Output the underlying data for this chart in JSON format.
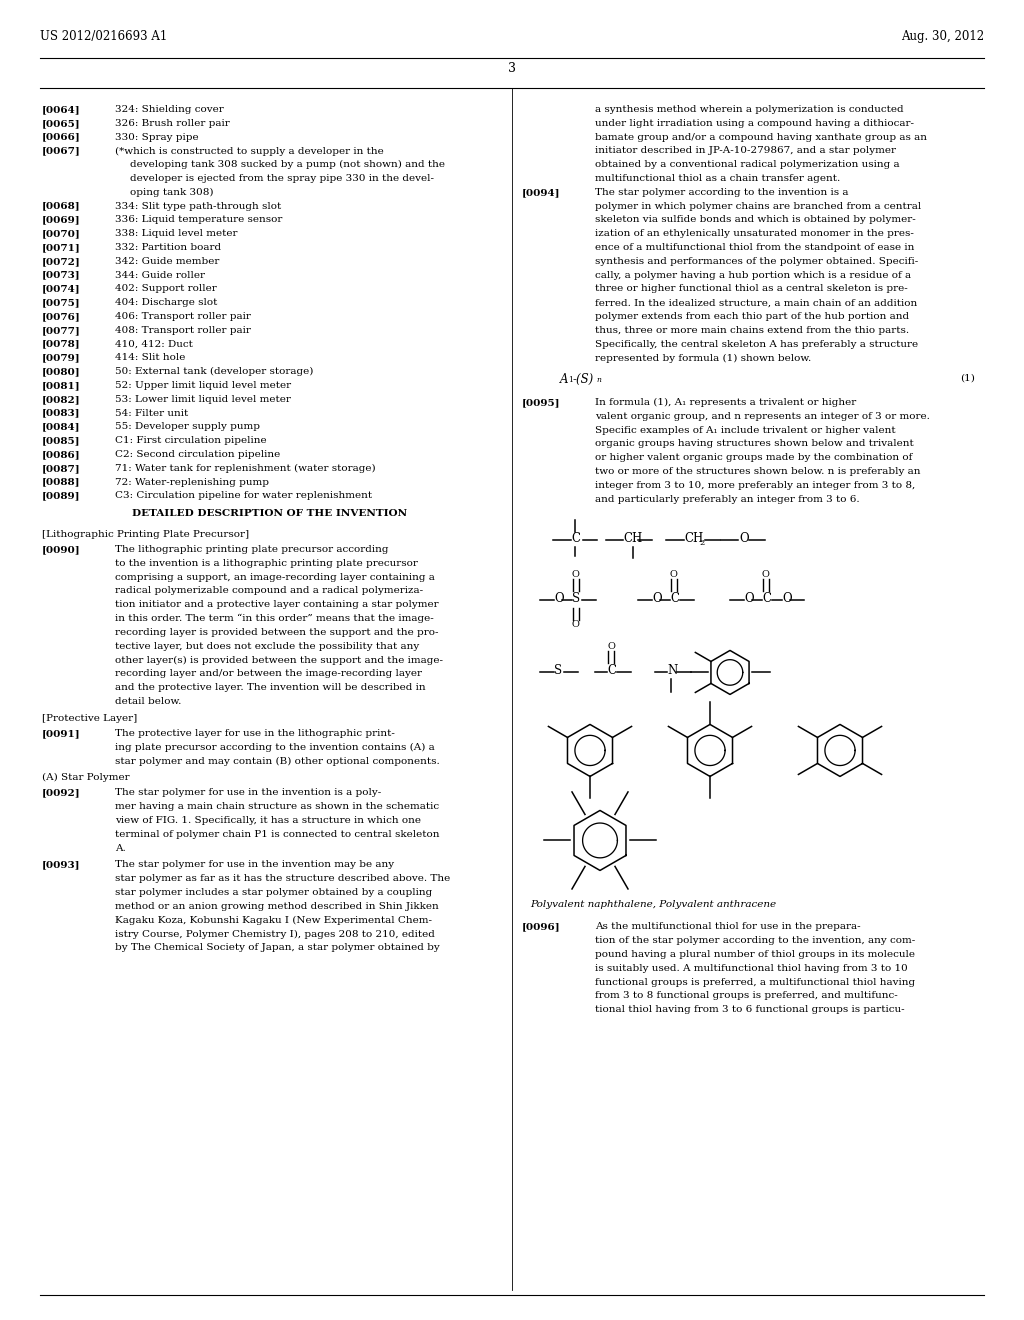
{
  "bg_color": "#ffffff",
  "header_left": "US 2012/0216693 A1",
  "header_right": "Aug. 30, 2012",
  "page_number": "3",
  "font_family": "DejaVu Serif",
  "fs_body": 7.5,
  "fs_header": 8.5,
  "left_col_entries": [
    [
      "[0064]",
      "324: Shielding cover"
    ],
    [
      "[0065]",
      "326: Brush roller pair"
    ],
    [
      "[0066]",
      "330: Spray pipe"
    ],
    [
      "[0067]",
      "(*which is constructed to supply a developer in the"
    ],
    [
      "",
      "  developing tank 308 sucked by a pump (not shown) and the"
    ],
    [
      "",
      "  developer is ejected from the spray pipe 330 in the devel-"
    ],
    [
      "",
      "  oping tank 308)"
    ],
    [
      "[0068]",
      "334: Slit type path-through slot"
    ],
    [
      "[0069]",
      "336: Liquid temperature sensor"
    ],
    [
      "[0070]",
      "338: Liquid level meter"
    ],
    [
      "[0071]",
      "332: Partition board"
    ],
    [
      "[0072]",
      "342: Guide member"
    ],
    [
      "[0073]",
      "344: Guide roller"
    ],
    [
      "[0074]",
      "402: Support roller"
    ],
    [
      "[0075]",
      "404: Discharge slot"
    ],
    [
      "[0076]",
      "406: Transport roller pair"
    ],
    [
      "[0077]",
      "408: Transport roller pair"
    ],
    [
      "[0078]",
      "410, 412: Duct"
    ],
    [
      "[0079]",
      "414: Slit hole"
    ],
    [
      "[0080]",
      "50: External tank (developer storage)"
    ],
    [
      "[0081]",
      "52: Upper limit liquid level meter"
    ],
    [
      "[0082]",
      "53: Lower limit liquid level meter"
    ],
    [
      "[0083]",
      "54: Filter unit"
    ],
    [
      "[0084]",
      "55: Developer supply pump"
    ],
    [
      "[0085]",
      "C1: First circulation pipeline"
    ],
    [
      "[0086]",
      "C2: Second circulation pipeline"
    ],
    [
      "[0087]",
      "71: Water tank for replenishment (water storage)"
    ],
    [
      "[0088]",
      "72: Water-replenishing pump"
    ],
    [
      "[0089]",
      "C3: Circulation pipeline for water replenishment"
    ]
  ],
  "section_header": "DETAILED DESCRIPTION OF THE INVENTION",
  "left_col_paras": [
    [
      "[Lithographic Printing Plate Precursor]",
      ""
    ],
    [
      "[0090]",
      "The lithographic printing plate precursor according to the invention is a lithographic printing plate precursor comprising a support, an image-recording layer containing a radical polymerizable compound and a radical polymeriza-tion initiator and a protective layer containing a star polymer in this order. The term “in this order” means that the image-recording layer is provided between the support and the pro-tective layer, but does not exclude the possibility that any other layer(s) is provided between the support and the image-recording layer and/or between the image-recording layer and the protective layer. The invention will be described in detail below."
    ],
    [
      "[Protective Layer]",
      ""
    ],
    [
      "[0091]",
      "The protective layer for use in the lithographic print-ing plate precursor according to the invention contains (A) a star polymer and may contain (B) other optional components."
    ],
    [
      "(A) Star Polymer",
      ""
    ],
    [
      "[0092]",
      "The star polymer for use in the invention is a poly-mer having a main chain structure as shown in the schematic view of FIG. 1. Specifically, it has a structure in which one terminal of polymer chain P1 is connected to central skeleton A."
    ],
    [
      "[0093]",
      "The star polymer for use in the invention may be any star polymer as far as it has the structure described above. The star polymer includes a star polymer obtained by a coupling method or an anion growing method described in Shin Jikken Kagaku Koza, Kobunshi Kagaku I (New Experimental Chem-istry Course, Polymer Chemistry I), pages 208 to 210, edited by The Chemical Society of Japan, a star polymer obtained by"
    ]
  ],
  "right_col_top": [
    [
      "",
      "a synthesis method wherein a polymerization is conducted"
    ],
    [
      "",
      "under light irradiation using a compound having a dithiocar-"
    ],
    [
      "",
      "bamate group and/or a compound having xanthate group as an"
    ],
    [
      "",
      "initiator described in JP-A-10-279867, and a star polymer"
    ],
    [
      "",
      "obtained by a conventional radical polymerization using a"
    ],
    [
      "",
      "multifunctional thiol as a chain transfer agent."
    ],
    [
      "[0094]",
      "The star polymer according to the invention is a"
    ],
    [
      "",
      "polymer in which polymer chains are branched from a central"
    ],
    [
      "",
      "skeleton via sulfide bonds and which is obtained by polymer-"
    ],
    [
      "",
      "ization of an ethylenically unsaturated monomer in the pres-"
    ],
    [
      "",
      "ence of a multifunctional thiol from the standpoint of ease in"
    ],
    [
      "",
      "synthesis and performances of the polymer obtained. Specifi-"
    ],
    [
      "",
      "cally, a polymer having a hub portion which is a residue of a"
    ],
    [
      "",
      "three or higher functional thiol as a central skeleton is pre-"
    ],
    [
      "",
      "ferred. In the idealized structure, a main chain of an addition"
    ],
    [
      "",
      "polymer extends from each thio part of the hub portion and"
    ],
    [
      "",
      "thus, three or more main chains extend from the thio parts."
    ],
    [
      "",
      "Specifically, the central skeleton A has preferably a structure"
    ],
    [
      "",
      "represented by formula (1) shown below."
    ]
  ],
  "right_col_mid": [
    [
      "[0095]",
      "In formula (1), A₁ represents a trivalent or higher"
    ],
    [
      "",
      "valent organic group, and n represents an integer of 3 or more."
    ],
    [
      "",
      "Specific examples of A₁ include trivalent or higher valent"
    ],
    [
      "",
      "organic groups having structures shown below and trivalent"
    ],
    [
      "",
      "or higher valent organic groups made by the combination of"
    ],
    [
      "",
      "two or more of the structures shown below. n is preferably an"
    ],
    [
      "",
      "integer from 3 to 10, more preferably an integer from 3 to 8,"
    ],
    [
      "",
      "and particularly preferably an integer from 3 to 6."
    ]
  ],
  "chem_label": "Polyvalent naphthalene, Polyvalent anthracene",
  "right_col_bot": [
    [
      "[0096]",
      "As the multifunctional thiol for use in the prepara-"
    ],
    [
      "",
      "tion of the star polymer according to the invention, any com-"
    ],
    [
      "",
      "pound having a plural number of thiol groups in its molecule"
    ],
    [
      "",
      "is suitably used. A multifunctional thiol having from 3 to 10"
    ],
    [
      "",
      "functional groups is preferred, a multifunctional thiol having"
    ],
    [
      "",
      "from 3 to 8 functional groups is preferred, and multifunc-"
    ],
    [
      "",
      "tional thiol having from 3 to 6 functional groups is particu-"
    ]
  ]
}
